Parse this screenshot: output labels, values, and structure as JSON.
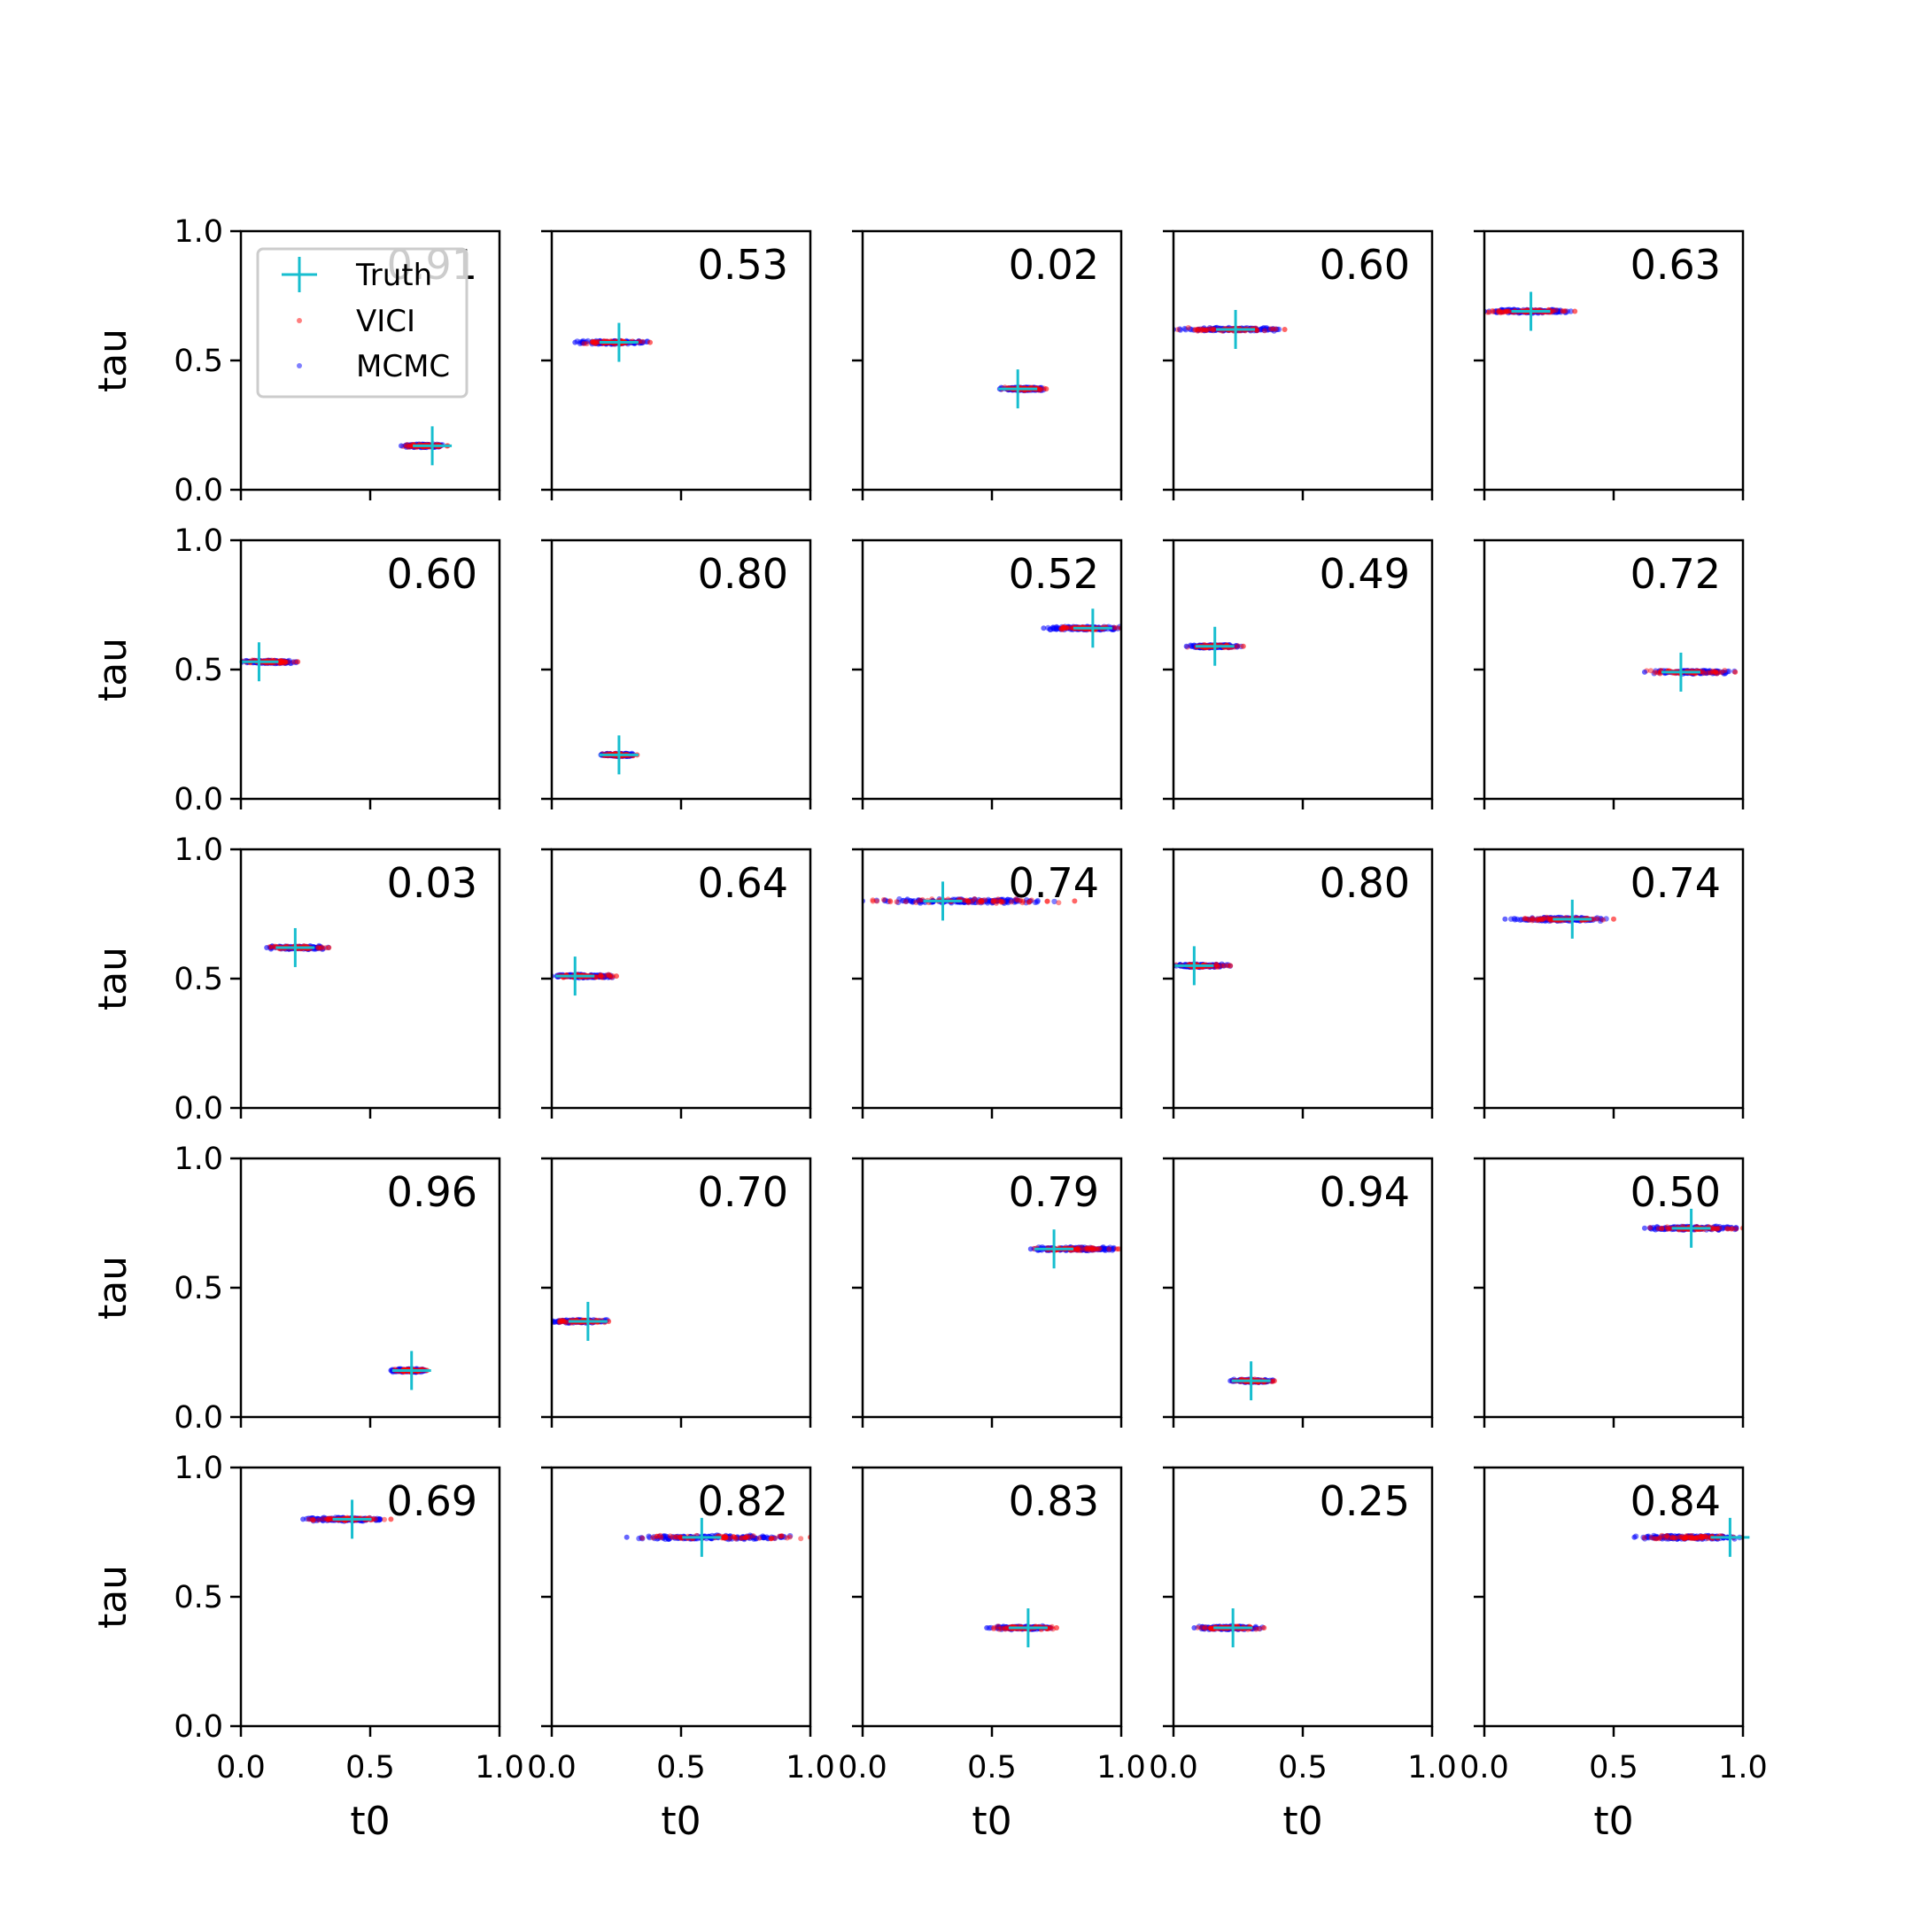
{
  "chart_data": {
    "type": "scatter",
    "layout": "5x5 grid",
    "xlabel": "t0",
    "ylabel": "tau",
    "xlim": [
      0,
      1
    ],
    "ylim": [
      0,
      1
    ],
    "xticks": [
      "0.0",
      "0.5",
      "1.0"
    ],
    "yticks": [
      "0.0",
      "0.5",
      "1.0"
    ],
    "legend": {
      "placement": "upper-left of first panel",
      "entries": [
        {
          "label": "Truth",
          "marker": "plus",
          "color": "#17becf"
        },
        {
          "label": "VICI",
          "marker": "dot",
          "color": "#ff0000"
        },
        {
          "label": "MCMC",
          "marker": "dot",
          "color": "#0000ff"
        }
      ]
    },
    "colors": {
      "truth": "#17becf",
      "vici": "#ff0000",
      "mcmc": "#0000ff"
    },
    "panels": [
      {
        "label": "0.91",
        "truth": [
          0.74,
          0.17
        ],
        "spread": [
          0.62,
          0.8
        ]
      },
      {
        "label": "0.53",
        "truth": [
          0.26,
          0.57
        ],
        "spread": [
          0.09,
          0.38
        ]
      },
      {
        "label": "0.02",
        "truth": [
          0.6,
          0.39
        ],
        "spread": [
          0.53,
          0.71
        ]
      },
      {
        "label": "0.60",
        "truth": [
          0.24,
          0.62
        ],
        "spread": [
          0.0,
          0.43
        ]
      },
      {
        "label": "0.63",
        "truth": [
          0.18,
          0.69
        ],
        "spread": [
          0.0,
          0.35
        ]
      },
      {
        "label": "0.60",
        "truth": [
          0.07,
          0.53
        ],
        "spread": [
          0.0,
          0.22
        ]
      },
      {
        "label": "0.80",
        "truth": [
          0.26,
          0.17
        ],
        "spread": [
          0.19,
          0.33
        ]
      },
      {
        "label": "0.52",
        "truth": [
          0.89,
          0.66
        ],
        "spread": [
          0.7,
          1.0
        ]
      },
      {
        "label": "0.49",
        "truth": [
          0.16,
          0.59
        ],
        "spread": [
          0.05,
          0.27
        ]
      },
      {
        "label": "0.72",
        "truth": [
          0.76,
          0.49
        ],
        "spread": [
          0.62,
          0.97
        ]
      },
      {
        "label": "0.03",
        "truth": [
          0.21,
          0.62
        ],
        "spread": [
          0.1,
          0.34
        ]
      },
      {
        "label": "0.64",
        "truth": [
          0.09,
          0.51
        ],
        "spread": [
          0.0,
          0.25
        ]
      },
      {
        "label": "0.74",
        "truth": [
          0.31,
          0.8
        ],
        "spread": [
          0.0,
          0.82
        ]
      },
      {
        "label": "0.80",
        "truth": [
          0.08,
          0.55
        ],
        "spread": [
          0.0,
          0.22
        ]
      },
      {
        "label": "0.74",
        "truth": [
          0.34,
          0.73
        ],
        "spread": [
          0.08,
          0.5
        ]
      },
      {
        "label": "0.96",
        "truth": [
          0.66,
          0.18
        ],
        "spread": [
          0.58,
          0.72
        ]
      },
      {
        "label": "0.70",
        "truth": [
          0.14,
          0.37
        ],
        "spread": [
          0.0,
          0.22
        ]
      },
      {
        "label": "0.79",
        "truth": [
          0.74,
          0.65
        ],
        "spread": [
          0.65,
          0.99
        ]
      },
      {
        "label": "0.94",
        "truth": [
          0.3,
          0.14
        ],
        "spread": [
          0.22,
          0.39
        ]
      },
      {
        "label": "0.50",
        "truth": [
          0.8,
          0.73
        ],
        "spread": [
          0.62,
          1.0
        ]
      },
      {
        "label": "0.69",
        "truth": [
          0.43,
          0.8
        ],
        "spread": [
          0.24,
          0.58
        ]
      },
      {
        "label": "0.82",
        "truth": [
          0.58,
          0.73
        ],
        "spread": [
          0.29,
          1.0
        ]
      },
      {
        "label": "0.83",
        "truth": [
          0.64,
          0.38
        ],
        "spread": [
          0.48,
          0.75
        ]
      },
      {
        "label": "0.25",
        "truth": [
          0.23,
          0.38
        ],
        "spread": [
          0.08,
          0.35
        ]
      },
      {
        "label": "0.84",
        "truth": [
          0.95,
          0.73
        ],
        "spread": [
          0.58,
          1.0
        ]
      }
    ]
  }
}
